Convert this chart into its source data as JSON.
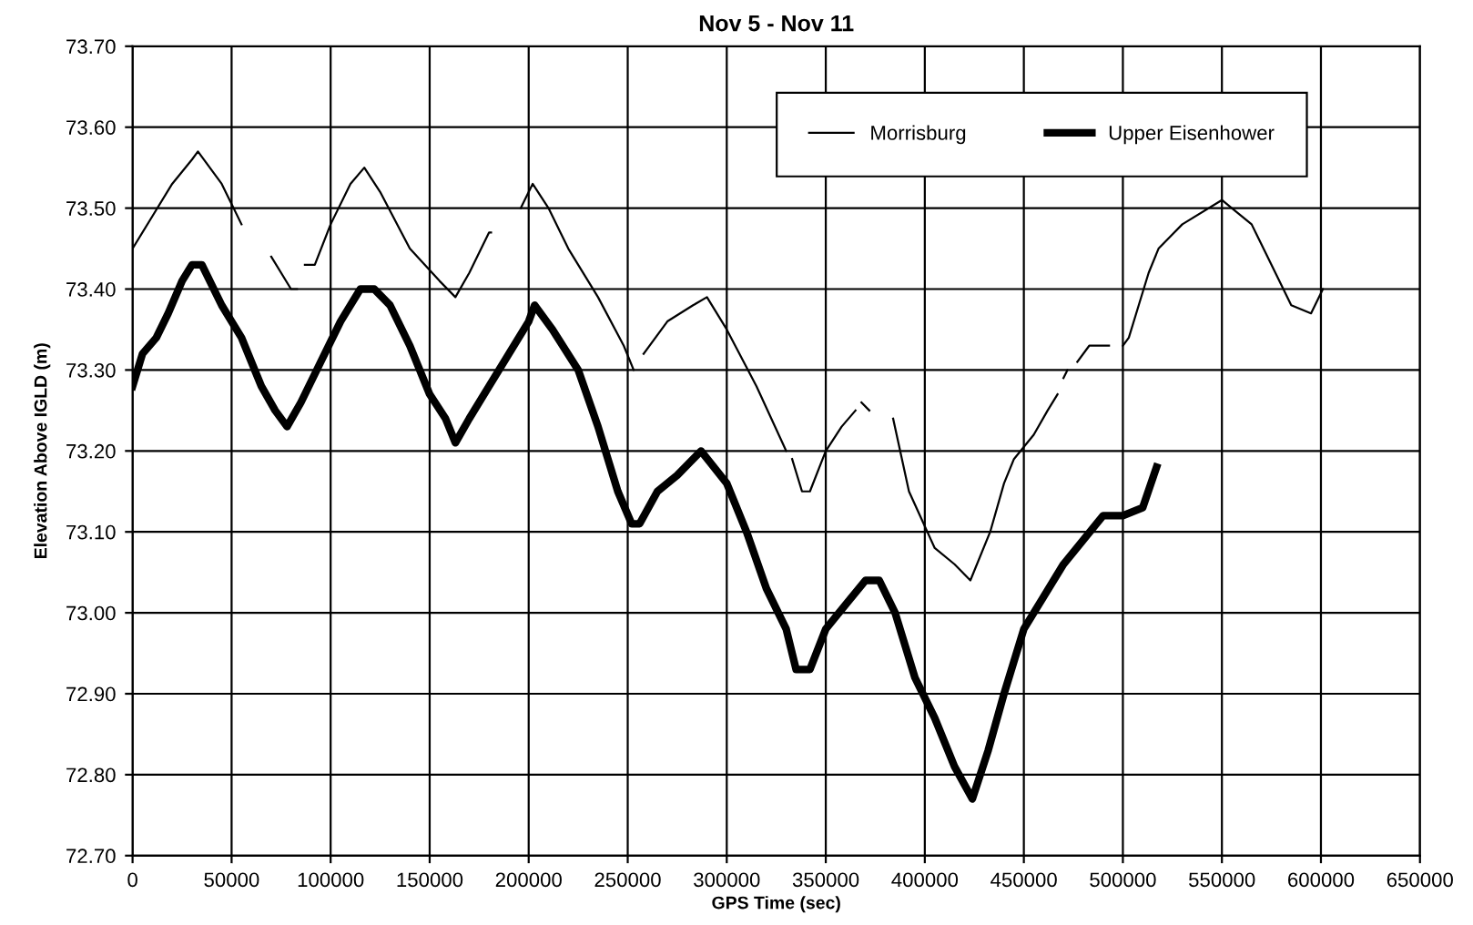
{
  "chart_data": {
    "type": "line",
    "title": "Nov 5 - Nov 11",
    "xlabel": "GPS Time (sec)",
    "ylabel": "Elevation Above IGLD (m)",
    "xlim": [
      0,
      650000
    ],
    "xticks": [
      0,
      50000,
      100000,
      150000,
      200000,
      250000,
      300000,
      350000,
      400000,
      450000,
      500000,
      550000,
      600000,
      650000
    ],
    "ylim": [
      72.7,
      73.7
    ],
    "yticks": [
      {
        "value": 72.7,
        "label": "72.70"
      },
      {
        "value": 72.8,
        "label": "72.80"
      },
      {
        "value": 72.9,
        "label": "72.90"
      },
      {
        "value": 73.0,
        "label": "73.00"
      },
      {
        "value": 73.1,
        "label": "73.10"
      },
      {
        "value": 73.2,
        "label": "73.20"
      },
      {
        "value": 73.3,
        "label": "73.30"
      },
      {
        "value": 73.4,
        "label": "73.40"
      },
      {
        "value": 73.5,
        "label": "73.50"
      },
      {
        "value": 73.6,
        "label": "73.60"
      },
      {
        "value": 73.7,
        "label": "73.70"
      }
    ],
    "grid": true,
    "legend": "top right",
    "marker": "none",
    "line_style": "solid",
    "series": [
      {
        "name": "Morrisburg",
        "color": "#000000",
        "x": [
          0,
          10000,
          20000,
          30000,
          33000,
          45000,
          55000,
          60000,
          70000,
          80000,
          83000,
          85000,
          87000,
          92000,
          100000,
          110000,
          117000,
          125000,
          140000,
          155000,
          163000,
          170000,
          180000,
          181000,
          188000,
          196000,
          202000,
          210000,
          220000,
          235000,
          248000,
          253000,
          255000,
          258000,
          270000,
          283000,
          290000,
          300000,
          315000,
          330000,
          331000,
          333000,
          338000,
          342000,
          350000,
          358000,
          365000,
          366000,
          368000,
          372000,
          378000,
          384000,
          392000,
          405000,
          415000,
          423000,
          433000,
          440000,
          445000,
          455000,
          462000,
          467000,
          468000,
          470000,
          472000,
          474000,
          477000,
          483000,
          493000,
          496000,
          500000,
          503000,
          508000,
          513000,
          518000,
          530000,
          550000,
          555000,
          565000,
          575000,
          585000,
          595000,
          601000
        ],
        "values": [
          73.45,
          73.49,
          73.53,
          73.56,
          73.57,
          73.53,
          73.48,
          null,
          73.44,
          73.4,
          73.4,
          null,
          73.43,
          73.43,
          73.48,
          73.53,
          73.55,
          73.52,
          73.45,
          73.41,
          73.39,
          73.42,
          73.47,
          73.47,
          null,
          73.5,
          73.53,
          73.5,
          73.45,
          73.39,
          73.33,
          73.3,
          null,
          73.32,
          73.36,
          73.38,
          73.39,
          73.35,
          73.28,
          73.2,
          null,
          73.19,
          73.15,
          73.15,
          73.2,
          73.23,
          73.25,
          null,
          73.26,
          73.25,
          null,
          73.24,
          73.15,
          73.08,
          73.06,
          73.04,
          73.1,
          73.16,
          73.19,
          73.22,
          73.25,
          73.27,
          null,
          73.29,
          73.3,
          null,
          73.31,
          73.33,
          73.33,
          null,
          73.33,
          73.34,
          73.38,
          73.42,
          73.45,
          73.48,
          73.51,
          73.5,
          73.48,
          73.43,
          73.38,
          73.37,
          73.4
        ]
      },
      {
        "name": "Upper Eisenhower",
        "color": "#000000",
        "x": [
          0,
          5000,
          12000,
          18000,
          25000,
          30000,
          35000,
          45000,
          55000,
          65000,
          72000,
          78000,
          85000,
          95000,
          105000,
          115000,
          122000,
          130000,
          140000,
          150000,
          158000,
          163000,
          170000,
          180000,
          190000,
          200000,
          203000,
          212000,
          225000,
          235000,
          245000,
          252000,
          256000,
          265000,
          275000,
          287000,
          300000,
          310000,
          320000,
          330000,
          335000,
          342000,
          350000,
          360000,
          370000,
          377000,
          385000,
          395000,
          405000,
          415000,
          424000,
          432000,
          440000,
          450000,
          460000,
          470000,
          480000,
          490000,
          500000,
          510000,
          517000
        ],
        "values": [
          73.28,
          73.32,
          73.34,
          73.37,
          73.41,
          73.43,
          73.43,
          73.38,
          73.34,
          73.28,
          73.25,
          73.23,
          73.26,
          73.31,
          73.36,
          73.4,
          73.4,
          73.38,
          73.33,
          73.27,
          73.24,
          73.21,
          73.24,
          73.28,
          73.32,
          73.36,
          73.38,
          73.35,
          73.3,
          73.23,
          73.15,
          73.11,
          73.11,
          73.15,
          73.17,
          73.2,
          73.16,
          73.1,
          73.03,
          72.98,
          72.93,
          72.93,
          72.98,
          73.01,
          73.04,
          73.04,
          73.0,
          72.92,
          72.87,
          72.81,
          72.77,
          72.83,
          72.9,
          72.98,
          73.02,
          73.06,
          73.09,
          73.12,
          73.12,
          73.13,
          73.18
        ]
      }
    ]
  }
}
